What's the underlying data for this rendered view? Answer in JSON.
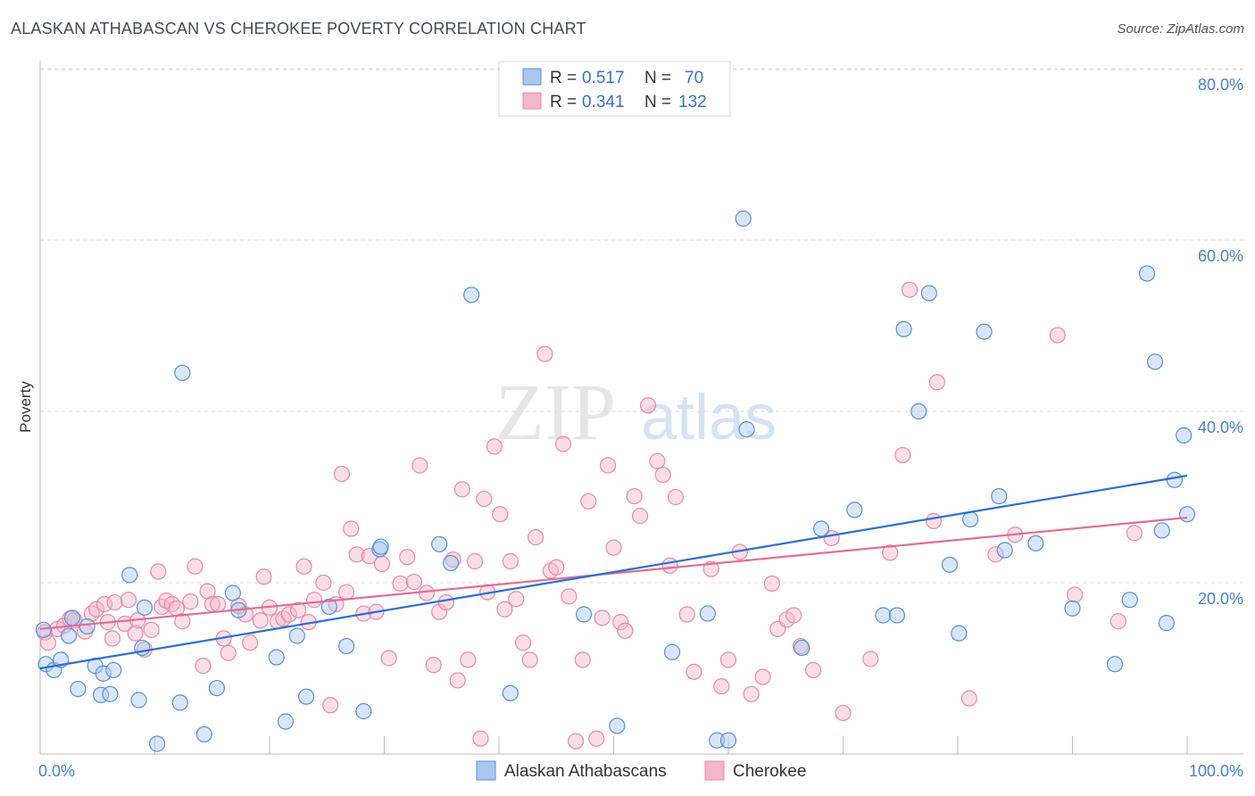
{
  "title": "ALASKAN ATHABASCAN VS CHEROKEE POVERTY CORRELATION CHART",
  "source": "Source: ZipAtlas.com",
  "watermark": {
    "zip": "ZIP",
    "atlas": "atlas"
  },
  "colors": {
    "blue_fill": "#a9c7ef",
    "blue_stroke": "#5b8fd6",
    "blue_line": "#2c6fcf",
    "pink_fill": "#f5b6c9",
    "pink_stroke": "#e88aa6",
    "pink_line": "#e06e93",
    "tick": "#4a7fc9",
    "grid": "#dddddd"
  },
  "legend": {
    "r_label": "R =",
    "n_label": "N =",
    "items": [
      {
        "r": "0.517",
        "n": "70"
      },
      {
        "r": "0.341",
        "n": "132"
      }
    ]
  },
  "chart_data": {
    "type": "scatter",
    "title": "ALASKAN ATHABASCAN VS CHEROKEE POVERTY CORRELATION CHART",
    "xlabel": "",
    "ylabel": "Poverty",
    "xlim": [
      0,
      100
    ],
    "ylim": [
      0,
      85
    ],
    "x_tick_labels": [
      {
        "value": 0,
        "label": "0.0%"
      },
      {
        "value": 100,
        "label": "100.0%"
      }
    ],
    "y_tick_labels": [
      {
        "value": 20,
        "label": "20.0%"
      },
      {
        "value": 40,
        "label": "40.0%"
      },
      {
        "value": 60,
        "label": "60.0%"
      },
      {
        "value": 80,
        "label": "80.0%"
      }
    ],
    "grid": "horizontal dashed",
    "legend_position": "top-center",
    "series": [
      {
        "name": "Alaskan Athabascans",
        "color": "#a9c7ef",
        "trend": {
          "x": [
            0,
            100
          ],
          "y": [
            10.0,
            32.5
          ]
        },
        "points": [
          [
            0.3,
            14.5
          ],
          [
            0.5,
            10.5
          ],
          [
            1.2,
            9.8
          ],
          [
            1.8,
            11.0
          ],
          [
            2.5,
            13.8
          ],
          [
            2.8,
            15.9
          ],
          [
            3.3,
            7.6
          ],
          [
            4.1,
            14.9
          ],
          [
            4.8,
            10.3
          ],
          [
            5.3,
            6.9
          ],
          [
            5.5,
            9.4
          ],
          [
            6.1,
            7.0
          ],
          [
            6.4,
            9.8
          ],
          [
            7.8,
            20.9
          ],
          [
            8.6,
            6.3
          ],
          [
            8.9,
            12.4
          ],
          [
            9.1,
            17.1
          ],
          [
            10.2,
            1.2
          ],
          [
            12.2,
            6.0
          ],
          [
            12.4,
            44.5
          ],
          [
            14.3,
            2.3
          ],
          [
            15.4,
            7.7
          ],
          [
            16.8,
            18.8
          ],
          [
            17.3,
            16.8
          ],
          [
            20.6,
            11.3
          ],
          [
            21.4,
            3.8
          ],
          [
            22.4,
            13.8
          ],
          [
            23.2,
            6.7
          ],
          [
            25.2,
            17.2
          ],
          [
            26.7,
            12.6
          ],
          [
            28.2,
            5.0
          ],
          [
            29.6,
            23.9
          ],
          [
            29.7,
            24.2
          ],
          [
            34.8,
            24.5
          ],
          [
            35.8,
            22.3
          ],
          [
            37.6,
            53.6
          ],
          [
            41.0,
            7.1
          ],
          [
            47.4,
            16.3
          ],
          [
            50.3,
            3.3
          ],
          [
            55.1,
            11.9
          ],
          [
            59.0,
            1.6
          ],
          [
            60.0,
            1.6
          ],
          [
            61.3,
            62.5
          ],
          [
            61.6,
            37.9
          ],
          [
            66.4,
            12.4
          ],
          [
            68.1,
            26.3
          ],
          [
            71.0,
            28.5
          ],
          [
            73.5,
            16.2
          ],
          [
            74.7,
            16.2
          ],
          [
            75.3,
            49.6
          ],
          [
            76.6,
            40.0
          ],
          [
            77.5,
            53.8
          ],
          [
            79.3,
            22.1
          ],
          [
            80.1,
            14.1
          ],
          [
            81.1,
            27.4
          ],
          [
            82.3,
            49.3
          ],
          [
            83.6,
            30.1
          ],
          [
            84.1,
            23.8
          ],
          [
            86.8,
            24.6
          ],
          [
            90.0,
            17.0
          ],
          [
            93.7,
            10.5
          ],
          [
            95.0,
            18.0
          ],
          [
            96.5,
            56.1
          ],
          [
            97.2,
            45.8
          ],
          [
            97.8,
            26.1
          ],
          [
            98.2,
            15.3
          ],
          [
            98.9,
            32.0
          ],
          [
            99.7,
            37.2
          ],
          [
            100.0,
            28.0
          ],
          [
            58.2,
            16.4
          ]
        ]
      },
      {
        "name": "Cherokee",
        "color": "#f5b6c9",
        "trend": {
          "x": [
            0,
            100
          ],
          "y": [
            14.6,
            27.6
          ]
        },
        "points": [
          [
            0.4,
            14.2
          ],
          [
            0.7,
            13.0
          ],
          [
            1.5,
            14.6
          ],
          [
            2.1,
            15.0
          ],
          [
            2.6,
            15.8
          ],
          [
            3.0,
            15.6
          ],
          [
            3.9,
            14.3
          ],
          [
            4.5,
            16.4
          ],
          [
            4.9,
            16.9
          ],
          [
            5.6,
            17.5
          ],
          [
            5.9,
            15.4
          ],
          [
            6.3,
            13.5
          ],
          [
            6.5,
            17.7
          ],
          [
            7.4,
            15.2
          ],
          [
            7.7,
            18.0
          ],
          [
            8.3,
            14.1
          ],
          [
            8.5,
            15.6
          ],
          [
            9.1,
            12.2
          ],
          [
            9.7,
            14.5
          ],
          [
            10.3,
            21.3
          ],
          [
            10.6,
            17.2
          ],
          [
            11.0,
            17.9
          ],
          [
            11.5,
            17.5
          ],
          [
            11.9,
            17.0
          ],
          [
            12.4,
            15.5
          ],
          [
            13.1,
            17.8
          ],
          [
            13.5,
            21.9
          ],
          [
            14.2,
            10.3
          ],
          [
            14.6,
            19.0
          ],
          [
            15.0,
            17.5
          ],
          [
            15.5,
            17.5
          ],
          [
            16.0,
            13.5
          ],
          [
            16.4,
            11.8
          ],
          [
            17.3,
            17.3
          ],
          [
            17.9,
            16.3
          ],
          [
            18.3,
            13.0
          ],
          [
            19.2,
            15.6
          ],
          [
            19.5,
            20.7
          ],
          [
            20.0,
            17.1
          ],
          [
            20.7,
            15.5
          ],
          [
            21.2,
            15.8
          ],
          [
            21.7,
            16.3
          ],
          [
            22.5,
            16.8
          ],
          [
            23.0,
            21.9
          ],
          [
            23.4,
            15.4
          ],
          [
            23.9,
            18.0
          ],
          [
            24.7,
            20.0
          ],
          [
            25.3,
            5.7
          ],
          [
            25.8,
            17.5
          ],
          [
            26.3,
            32.7
          ],
          [
            26.7,
            18.9
          ],
          [
            27.1,
            26.3
          ],
          [
            27.6,
            23.3
          ],
          [
            28.2,
            16.4
          ],
          [
            28.7,
            23.1
          ],
          [
            29.3,
            16.6
          ],
          [
            29.8,
            22.2
          ],
          [
            30.4,
            11.2
          ],
          [
            31.4,
            19.9
          ],
          [
            32.0,
            23.0
          ],
          [
            32.6,
            20.1
          ],
          [
            33.1,
            33.7
          ],
          [
            33.7,
            18.8
          ],
          [
            34.3,
            10.4
          ],
          [
            34.8,
            16.6
          ],
          [
            35.4,
            17.7
          ],
          [
            36.0,
            22.7
          ],
          [
            36.4,
            8.6
          ],
          [
            36.8,
            30.9
          ],
          [
            37.3,
            11.0
          ],
          [
            37.9,
            22.5
          ],
          [
            38.4,
            1.8
          ],
          [
            38.7,
            29.8
          ],
          [
            39.0,
            18.9
          ],
          [
            39.6,
            35.9
          ],
          [
            40.1,
            28.0
          ],
          [
            40.5,
            16.9
          ],
          [
            41.0,
            22.5
          ],
          [
            41.5,
            18.1
          ],
          [
            42.1,
            13.0
          ],
          [
            42.7,
            11.0
          ],
          [
            43.2,
            25.3
          ],
          [
            44.0,
            46.7
          ],
          [
            44.5,
            21.4
          ],
          [
            45.0,
            21.8
          ],
          [
            45.6,
            36.2
          ],
          [
            46.1,
            18.4
          ],
          [
            46.7,
            1.5
          ],
          [
            47.3,
            11.0
          ],
          [
            47.8,
            29.5
          ],
          [
            48.5,
            1.8
          ],
          [
            49.0,
            15.9
          ],
          [
            49.5,
            33.7
          ],
          [
            50.0,
            24.1
          ],
          [
            50.6,
            15.4
          ],
          [
            51.0,
            14.4
          ],
          [
            51.8,
            30.1
          ],
          [
            52.3,
            27.8
          ],
          [
            53.0,
            40.7
          ],
          [
            53.8,
            34.2
          ],
          [
            54.3,
            32.6
          ],
          [
            54.9,
            22.0
          ],
          [
            55.4,
            30.0
          ],
          [
            56.4,
            16.3
          ],
          [
            57.0,
            9.6
          ],
          [
            58.5,
            21.6
          ],
          [
            59.4,
            7.9
          ],
          [
            60.0,
            11.0
          ],
          [
            61.0,
            23.6
          ],
          [
            62.0,
            7.0
          ],
          [
            63.0,
            9.0
          ],
          [
            63.8,
            19.9
          ],
          [
            64.3,
            14.6
          ],
          [
            65.1,
            15.7
          ],
          [
            65.7,
            16.2
          ],
          [
            66.3,
            12.6
          ],
          [
            67.4,
            9.8
          ],
          [
            69.0,
            25.2
          ],
          [
            70.0,
            4.8
          ],
          [
            72.4,
            11.1
          ],
          [
            74.1,
            23.5
          ],
          [
            75.2,
            34.9
          ],
          [
            75.8,
            54.2
          ],
          [
            77.9,
            27.2
          ],
          [
            78.2,
            43.4
          ],
          [
            81.0,
            6.5
          ],
          [
            83.3,
            23.3
          ],
          [
            85.0,
            25.6
          ],
          [
            88.7,
            48.9
          ],
          [
            94.0,
            15.5
          ],
          [
            95.4,
            25.8
          ],
          [
            90.2,
            18.6
          ]
        ]
      }
    ]
  },
  "bottom_legend": [
    "Alaskan Athabascans",
    "Cherokee"
  ]
}
